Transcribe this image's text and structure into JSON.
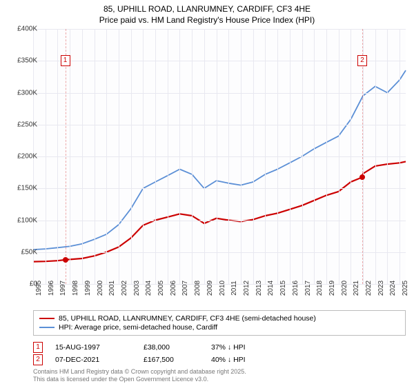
{
  "title": {
    "line1": "85, UPHILL ROAD, LLANRUMNEY, CARDIFF, CF3 4HE",
    "line2": "Price paid vs. HM Land Registry's House Price Index (HPI)"
  },
  "chart": {
    "type": "line",
    "background_color": "#fdfdfe",
    "grid_color": "#e8e8f0",
    "axis_label_color": "#333333",
    "axis_label_fontsize": 10,
    "x_years": [
      1995,
      1996,
      1997,
      1998,
      1999,
      2000,
      2001,
      2002,
      2003,
      2004,
      2005,
      2006,
      2007,
      2008,
      2009,
      2010,
      2011,
      2012,
      2013,
      2014,
      2015,
      2016,
      2017,
      2018,
      2019,
      2020,
      2021,
      2022,
      2023,
      2024,
      2025
    ],
    "x_min_year": 1995,
    "x_max_year": 2025.5,
    "y_ticks": [
      0,
      50000,
      100000,
      150000,
      200000,
      250000,
      300000,
      350000,
      400000
    ],
    "y_tick_labels": [
      "£0",
      "£50K",
      "£100K",
      "£150K",
      "£200K",
      "£250K",
      "£300K",
      "£350K",
      "£400K"
    ],
    "ylim": [
      0,
      400000
    ],
    "series": [
      {
        "name": "price_paid",
        "label": "85, UPHILL ROAD, LLANRUMNEY, CARDIFF, CF3 4HE (semi-detached house)",
        "color": "#cc0000",
        "width": 2.2,
        "points": [
          [
            1995,
            35000
          ],
          [
            1996,
            35500
          ],
          [
            1997,
            36500
          ],
          [
            1997.63,
            38000
          ],
          [
            1998,
            38500
          ],
          [
            1999,
            40000
          ],
          [
            2000,
            44000
          ],
          [
            2001,
            50000
          ],
          [
            2002,
            58000
          ],
          [
            2003,
            72000
          ],
          [
            2004,
            92000
          ],
          [
            2005,
            100000
          ],
          [
            2006,
            105000
          ],
          [
            2007,
            110000
          ],
          [
            2008,
            107000
          ],
          [
            2009,
            95000
          ],
          [
            2010,
            103000
          ],
          [
            2011,
            100000
          ],
          [
            2012,
            98000
          ],
          [
            2013,
            101000
          ],
          [
            2014,
            107000
          ],
          [
            2015,
            111000
          ],
          [
            2016,
            117000
          ],
          [
            2017,
            123000
          ],
          [
            2018,
            131000
          ],
          [
            2019,
            139000
          ],
          [
            2020,
            145000
          ],
          [
            2021,
            160000
          ],
          [
            2021.94,
            167500
          ],
          [
            2022,
            173000
          ],
          [
            2023,
            185000
          ],
          [
            2024,
            188000
          ],
          [
            2025,
            190000
          ],
          [
            2025.5,
            192000
          ]
        ]
      },
      {
        "name": "hpi",
        "label": "HPI: Average price, semi-detached house, Cardiff",
        "color": "#5b8fd6",
        "width": 1.8,
        "points": [
          [
            1995,
            54000
          ],
          [
            1996,
            55000
          ],
          [
            1997,
            57000
          ],
          [
            1998,
            59000
          ],
          [
            1999,
            63000
          ],
          [
            2000,
            70000
          ],
          [
            2001,
            78000
          ],
          [
            2002,
            93000
          ],
          [
            2003,
            118000
          ],
          [
            2004,
            150000
          ],
          [
            2005,
            160000
          ],
          [
            2006,
            170000
          ],
          [
            2007,
            180000
          ],
          [
            2008,
            172000
          ],
          [
            2009,
            150000
          ],
          [
            2010,
            162000
          ],
          [
            2011,
            158000
          ],
          [
            2012,
            155000
          ],
          [
            2013,
            160000
          ],
          [
            2014,
            172000
          ],
          [
            2015,
            180000
          ],
          [
            2016,
            190000
          ],
          [
            2017,
            200000
          ],
          [
            2018,
            212000
          ],
          [
            2019,
            222000
          ],
          [
            2020,
            232000
          ],
          [
            2021,
            258000
          ],
          [
            2022,
            295000
          ],
          [
            2023,
            310000
          ],
          [
            2024,
            300000
          ],
          [
            2025,
            320000
          ],
          [
            2025.5,
            335000
          ]
        ]
      }
    ],
    "markers": [
      {
        "num": "1",
        "year": 1997.63,
        "box_y": 350000,
        "color": "#cc0000",
        "dot_y": 38000
      },
      {
        "num": "2",
        "year": 2021.94,
        "box_y": 350000,
        "color": "#cc0000",
        "dot_y": 167500
      }
    ]
  },
  "legend": {
    "items": [
      {
        "color": "#cc0000",
        "label": "85, UPHILL ROAD, LLANRUMNEY, CARDIFF, CF3 4HE (semi-detached house)"
      },
      {
        "color": "#5b8fd6",
        "label": "HPI: Average price, semi-detached house, Cardiff"
      }
    ]
  },
  "events": [
    {
      "num": "1",
      "color": "#cc0000",
      "date": "15-AUG-1997",
      "price": "£38,000",
      "delta": "37% ↓ HPI"
    },
    {
      "num": "2",
      "color": "#cc0000",
      "date": "07-DEC-2021",
      "price": "£167,500",
      "delta": "40% ↓ HPI"
    }
  ],
  "footnote": {
    "line1": "Contains HM Land Registry data © Crown copyright and database right 2025.",
    "line2": "This data is licensed under the Open Government Licence v3.0."
  }
}
